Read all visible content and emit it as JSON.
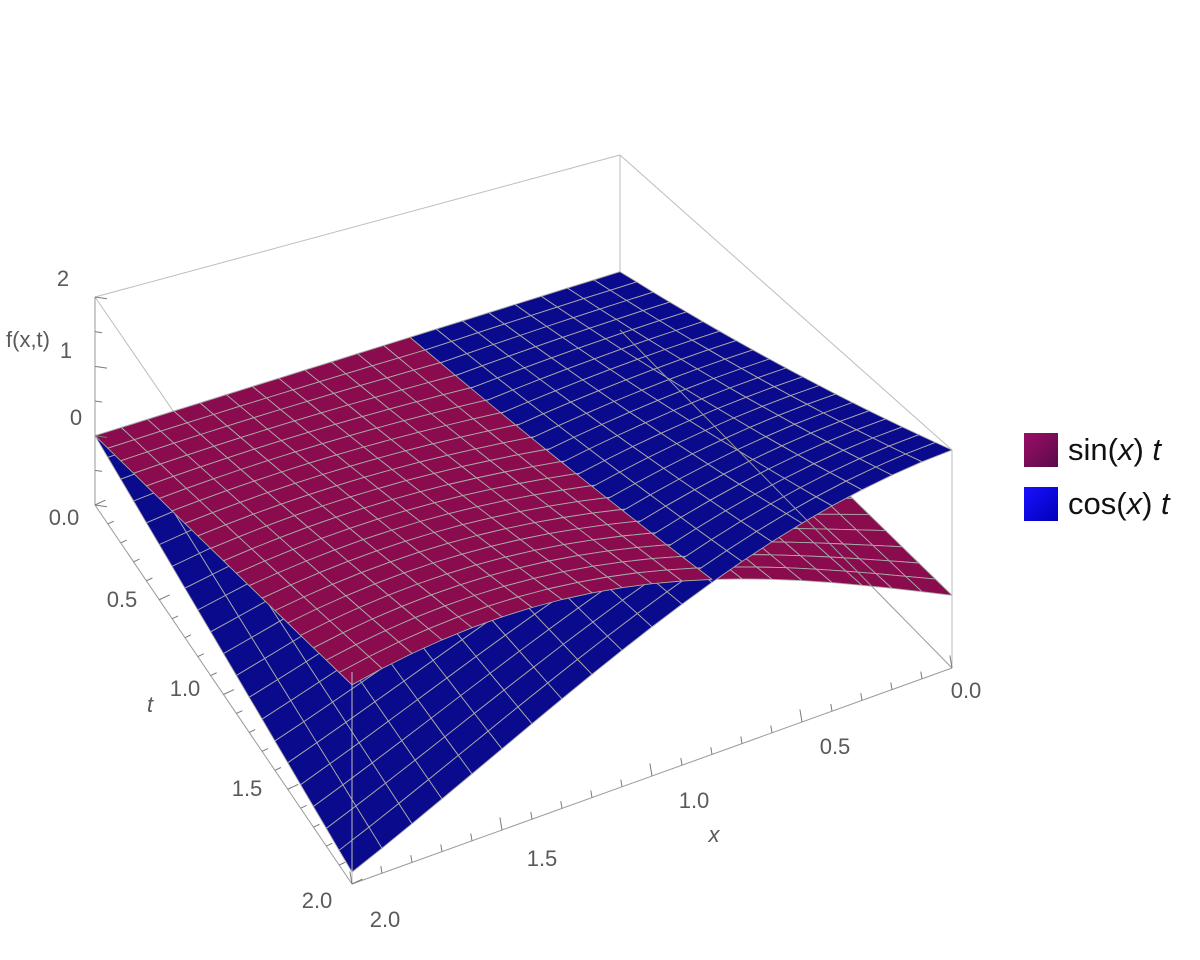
{
  "chart_data": {
    "type": "surface3d",
    "title": "",
    "zlabel": "f(x,t)",
    "xlabel": "x",
    "ylabel": "t",
    "xlim": [
      0,
      2
    ],
    "ylim": [
      0,
      2
    ],
    "zlim": [
      -1,
      2
    ],
    "x_ticks": [
      "0.0",
      "0.5",
      "1.0",
      "1.5",
      "2.0"
    ],
    "t_ticks": [
      "0.0",
      "0.5",
      "1.0",
      "1.5",
      "2.0"
    ],
    "z_ticks": [
      "0",
      "1",
      "2"
    ],
    "legend_position": "right",
    "series": [
      {
        "name": "sin(x) t",
        "function": "sin(x)*t",
        "color": "#8a0c4e"
      },
      {
        "name": "cos(x) t",
        "function": "cos(x)*t",
        "color": "#0a0a8c"
      }
    ],
    "mesh_lines_color": "#a9a9a9"
  },
  "legend": {
    "items": [
      {
        "name": "sin(",
        "var": "x",
        "suffix": ") ",
        "param": "t",
        "swatch": "#7a0c55"
      },
      {
        "name": "cos(",
        "var": "x",
        "suffix": ") ",
        "param": "t",
        "swatch": "#0a00e6"
      }
    ]
  }
}
